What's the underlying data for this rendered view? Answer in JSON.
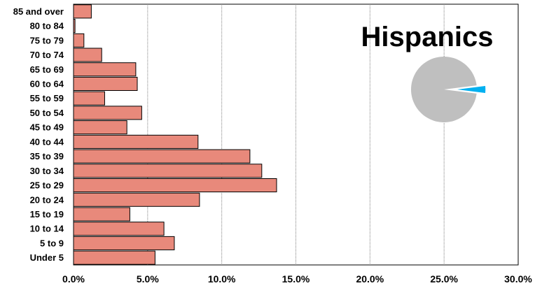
{
  "chart_data": {
    "type": "bar",
    "orientation": "horizontal",
    "title": "Hispanics",
    "xlabel": "",
    "ylabel": "",
    "categories": [
      "85 and over",
      "80 to 84",
      "75 to 79",
      "70 to 74",
      "65 to 69",
      "60 to 64",
      "55 to 59",
      "50 to 54",
      "45 to 49",
      "40 to 44",
      "35 to 39",
      "30 to 34",
      "25 to 29",
      "20 to 24",
      "15 to 19",
      "10 to 14",
      "5 to 9",
      "Under 5"
    ],
    "values": [
      1.2,
      0.1,
      0.7,
      1.9,
      4.2,
      4.3,
      2.1,
      4.6,
      3.6,
      8.4,
      11.9,
      12.7,
      13.7,
      8.5,
      3.8,
      6.1,
      6.8,
      5.5
    ],
    "xlim": [
      0,
      30
    ],
    "xticks": [
      "0.0%",
      "5.0%",
      "10.0%",
      "15.0%",
      "20.0%",
      "25.0%",
      "30.0%"
    ],
    "grid": "vertical dotted",
    "bar_color": "#E8897B",
    "inset_pie": {
      "highlight_fraction": 0.04,
      "highlight_color": "#00B0F0",
      "rest_color": "#BFBFBF",
      "placement": "top-right"
    }
  }
}
